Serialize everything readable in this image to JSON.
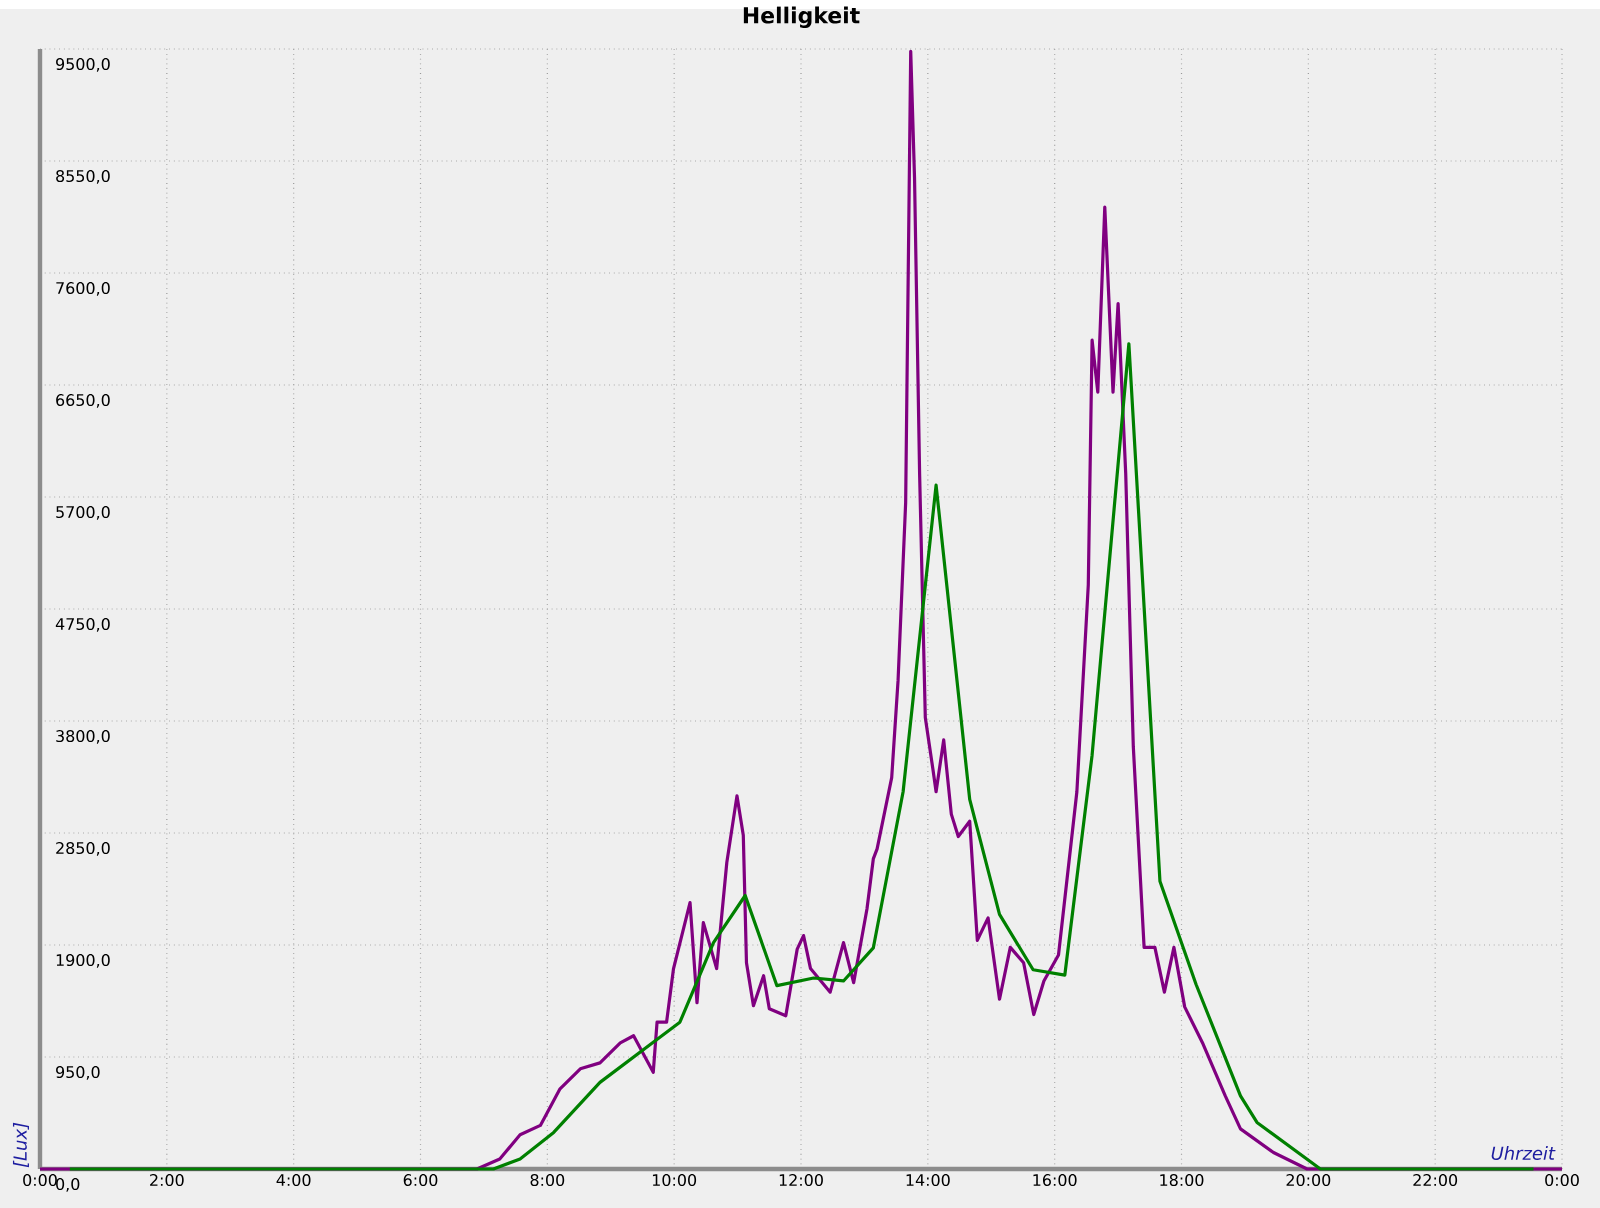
{
  "chart_data": {
    "type": "line",
    "title": "Helligkeit",
    "xlabel": "Uhrzeit",
    "ylabel": "[Lux]",
    "xlim": [
      0,
      24
    ],
    "ylim": [
      0,
      9500
    ],
    "xticks": [
      {
        "value": 0,
        "label": "0:00"
      },
      {
        "value": 2,
        "label": "2:00"
      },
      {
        "value": 4,
        "label": "4:00"
      },
      {
        "value": 6,
        "label": "6:00"
      },
      {
        "value": 8,
        "label": "8:00"
      },
      {
        "value": 10,
        "label": "10:00"
      },
      {
        "value": 12,
        "label": "12:00"
      },
      {
        "value": 14,
        "label": "14:00"
      },
      {
        "value": 16,
        "label": "16:00"
      },
      {
        "value": 18,
        "label": "18:00"
      },
      {
        "value": 20,
        "label": "20:00"
      },
      {
        "value": 22,
        "label": "22:00"
      },
      {
        "value": 24,
        "label": "0:00"
      }
    ],
    "yticks": [
      {
        "value": 0,
        "label": "0,0"
      },
      {
        "value": 950,
        "label": "950,0"
      },
      {
        "value": 1900,
        "label": "1900,0"
      },
      {
        "value": 2850,
        "label": "2850,0"
      },
      {
        "value": 3800,
        "label": "3800,0"
      },
      {
        "value": 4750,
        "label": "4750,0"
      },
      {
        "value": 5700,
        "label": "5700,0"
      },
      {
        "value": 6650,
        "label": "6650,0"
      },
      {
        "value": 7600,
        "label": "7600,0"
      },
      {
        "value": 8550,
        "label": "8550,0"
      },
      {
        "value": 9500,
        "label": "9500,0"
      }
    ],
    "grid": true,
    "marker": "none",
    "line_style": "solid",
    "series": [
      {
        "color": "#800080",
        "x": [
          0,
          6.89,
          7.25,
          7.57,
          7.89,
          8.2,
          8.52,
          8.83,
          9.15,
          9.36,
          9.67,
          9.73,
          9.88,
          9.99,
          10.25,
          10.36,
          10.46,
          10.67,
          10.83,
          10.99,
          11.09,
          11.14,
          11.25,
          11.41,
          11.5,
          11.76,
          11.94,
          12.04,
          12.15,
          12.46,
          12.67,
          12.83,
          13.04,
          13.14,
          13.2,
          13.43,
          13.53,
          13.65,
          13.73,
          13.79,
          13.87,
          13.96,
          14.08,
          14.13,
          14.25,
          14.37,
          14.48,
          14.66,
          14.78,
          14.95,
          15.13,
          15.3,
          15.51,
          15.67,
          15.83,
          16.06,
          16.35,
          16.53,
          16.59,
          16.68,
          16.79,
          16.92,
          17.0,
          17.12,
          17.24,
          17.41,
          17.58,
          17.73,
          17.88,
          18.05,
          18.34,
          18.69,
          18.93,
          19.45,
          19.98,
          24
        ],
        "values": [
          0,
          0,
          85,
          290,
          370,
          680,
          850,
          900,
          1070,
          1130,
          820,
          1245,
          1245,
          1700,
          2260,
          1410,
          2090,
          1700,
          2600,
          3165,
          2830,
          1750,
          1385,
          1640,
          1360,
          1300,
          1865,
          1980,
          1700,
          1500,
          1920,
          1580,
          2205,
          2630,
          2715,
          3320,
          4140,
          5650,
          9480,
          8410,
          5900,
          3830,
          3390,
          3200,
          3640,
          3010,
          2820,
          2950,
          1940,
          2130,
          1440,
          1880,
          1750,
          1310,
          1595,
          1815,
          3200,
          4955,
          7030,
          6590,
          8160,
          6590,
          7340,
          5900,
          3580,
          1880,
          1880,
          1500,
          1880,
          1375,
          1060,
          620,
          340,
          140,
          0,
          0
        ]
      },
      {
        "color": "#008000",
        "x": [
          0.47,
          7.15,
          7.57,
          8.1,
          8.83,
          9.67,
          10.09,
          10.62,
          11.12,
          11.62,
          12.2,
          12.67,
          13.14,
          13.61,
          14.13,
          14.66,
          15.13,
          15.66,
          16.16,
          16.59,
          17.17,
          17.66,
          18.23,
          18.93,
          19.19,
          20.19,
          23.55
        ],
        "values": [
          0,
          0,
          85,
          310,
          735,
          1075,
          1245,
          1920,
          2320,
          1555,
          1620,
          1595,
          1875,
          3200,
          5800,
          3135,
          2160,
          1690,
          1645,
          3510,
          7000,
          2440,
          1565,
          620,
          395,
          0,
          0
        ]
      }
    ]
  }
}
